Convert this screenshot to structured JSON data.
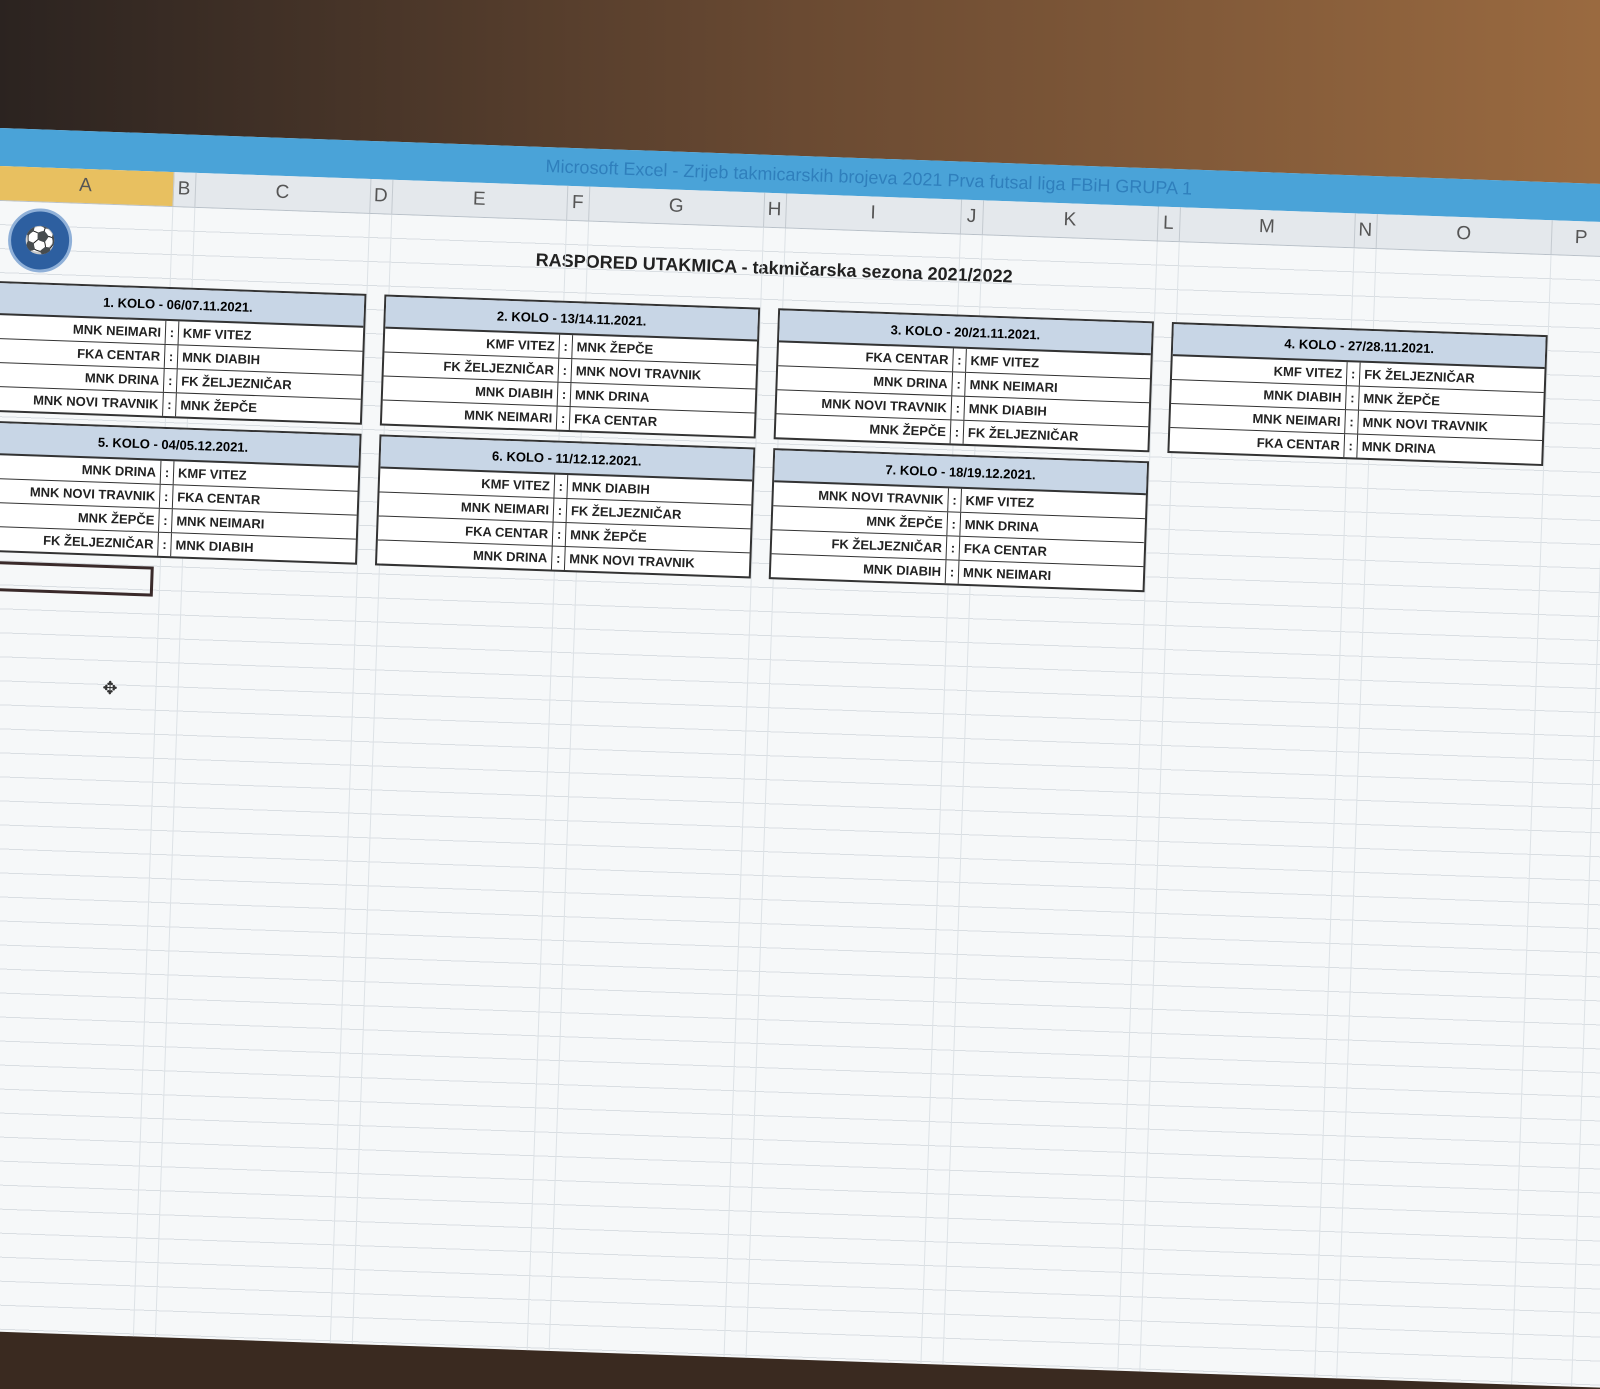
{
  "window": {
    "title": "Microsoft Excel - Zrijeb takmicarskih brojeva 2021 Prva futsal liga FBiH GRUPA 1"
  },
  "columns": [
    "A",
    "B",
    "C",
    "D",
    "E",
    "F",
    "G",
    "H",
    "I",
    "J",
    "K",
    "L",
    "M",
    "N",
    "O",
    "P"
  ],
  "selected_column": "A",
  "colors": {
    "header_fill": "#c8d6e6",
    "title_bar": "#4aa3d8",
    "selected_column": "#e8c060"
  },
  "sheet": {
    "title": "RASPORED UTAKMICA - takmičarska sezona 2021/2022",
    "logo": "football-federation-logo"
  },
  "rounds": [
    {
      "title": "1. KOLO - 06/07.11.2021.",
      "matches": [
        [
          "MNK NEIMARI",
          "KMF VITEZ"
        ],
        [
          "FKA CENTAR",
          "MNK DIABIH"
        ],
        [
          "MNK DRINA",
          "FK ŽELJEZNIČAR"
        ],
        [
          "MNK NOVI TRAVNIK",
          "MNK ŽEPČE"
        ]
      ]
    },
    {
      "title": "2. KOLO - 13/14.11.2021.",
      "matches": [
        [
          "KMF VITEZ",
          "MNK ŽEPČE"
        ],
        [
          "FK ŽELJEZNIČAR",
          "MNK NOVI TRAVNIK"
        ],
        [
          "MNK DIABIH",
          "MNK DRINA"
        ],
        [
          "MNK NEIMARI",
          "FKA CENTAR"
        ]
      ]
    },
    {
      "title": "3. KOLO - 20/21.11.2021.",
      "matches": [
        [
          "FKA CENTAR",
          "KMF VITEZ"
        ],
        [
          "MNK DRINA",
          "MNK NEIMARI"
        ],
        [
          "MNK NOVI TRAVNIK",
          "MNK DIABIH"
        ],
        [
          "MNK ŽEPČE",
          "FK ŽELJEZNIČAR"
        ]
      ]
    },
    {
      "title": "4. KOLO - 27/28.11.2021.",
      "matches": [
        [
          "KMF VITEZ",
          "FK ŽELJEZNIČAR"
        ],
        [
          "MNK DIABIH",
          "MNK ŽEPČE"
        ],
        [
          "MNK NEIMARI",
          "MNK NOVI TRAVNIK"
        ],
        [
          "FKA CENTAR",
          "MNK DRINA"
        ]
      ]
    },
    {
      "title": "5. KOLO - 04/05.12.2021.",
      "matches": [
        [
          "MNK DRINA",
          "KMF VITEZ"
        ],
        [
          "MNK NOVI TRAVNIK",
          "FKA CENTAR"
        ],
        [
          "MNK ŽEPČE",
          "MNK NEIMARI"
        ],
        [
          "FK ŽELJEZNIČAR",
          "MNK DIABIH"
        ]
      ]
    },
    {
      "title": "6. KOLO - 11/12.12.2021.",
      "matches": [
        [
          "KMF VITEZ",
          "MNK DIABIH"
        ],
        [
          "MNK NEIMARI",
          "FK ŽELJEZNIČAR"
        ],
        [
          "FKA CENTAR",
          "MNK ŽEPČE"
        ],
        [
          "MNK DRINA",
          "MNK NOVI TRAVNIK"
        ]
      ]
    },
    {
      "title": "7. KOLO - 18/19.12.2021.",
      "matches": [
        [
          "MNK NOVI TRAVNIK",
          "KMF VITEZ"
        ],
        [
          "MNK ŽEPČE",
          "MNK DRINA"
        ],
        [
          "FK ŽELJEZNIČAR",
          "FKA CENTAR"
        ],
        [
          "MNK DIABIH",
          "MNK NEIMARI"
        ]
      ]
    }
  ],
  "separator": ":"
}
